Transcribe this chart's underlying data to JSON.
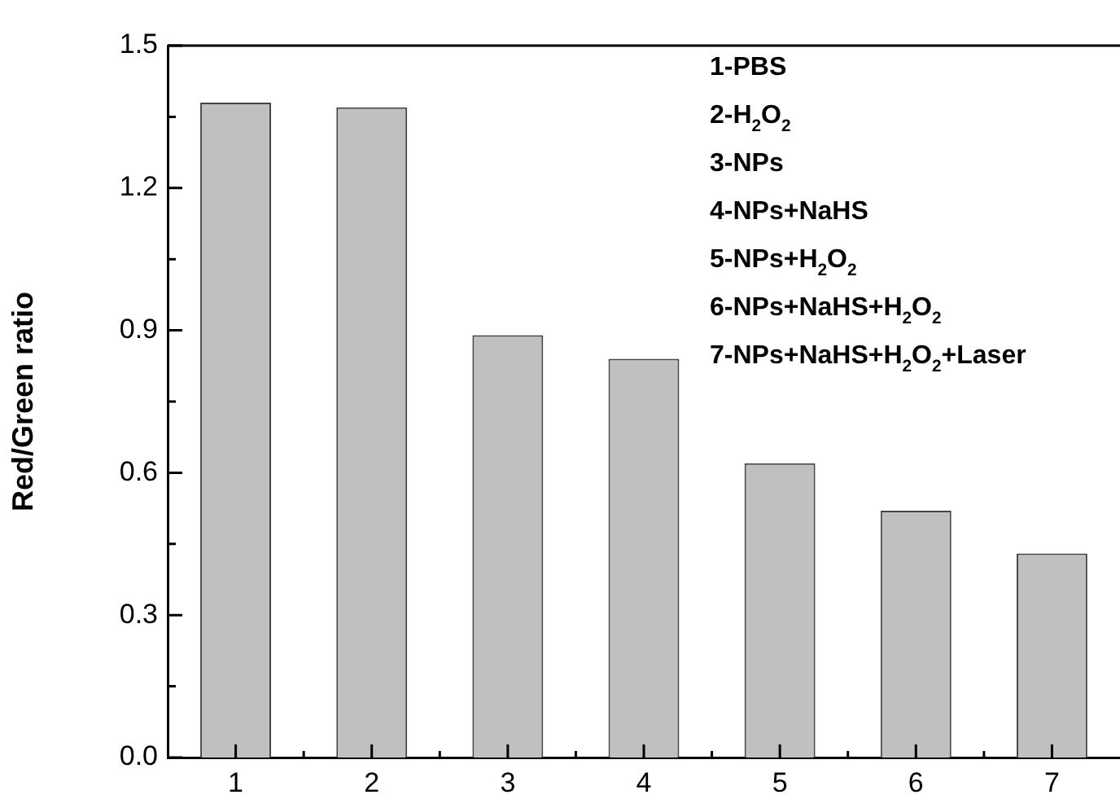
{
  "chart_data": {
    "type": "bar",
    "ylabel": "Red/Green ratio",
    "categories": [
      "1",
      "2",
      "3",
      "4",
      "5",
      "6",
      "7"
    ],
    "values": [
      1.38,
      1.37,
      0.89,
      0.84,
      0.62,
      0.52,
      0.43
    ],
    "color": "#c0c0c0",
    "ylim": [
      0,
      1.5
    ],
    "yticks": [
      {
        "value": 0,
        "label": "0.0"
      },
      {
        "value": 0.15,
        "label": null
      },
      0.3,
      {
        "value": 0.45,
        "label": null
      },
      0.6,
      {
        "value": 0.75,
        "label": null
      },
      0.9,
      {
        "value": 1.05,
        "label": null
      },
      1.2,
      {
        "value": 1.35,
        "label": null
      },
      1.5
    ],
    "annotations": [
      "1-PBS",
      "2-H$_{2}$O$_{2}$",
      "3-NPs",
      "4-NPs+NaHS",
      "5-NPs+H$_{2}$O$_{2}$",
      "6-NPs+NaHS+H$_{2}$O$_{2}$",
      "7-NPs+NaHS+H$_{2}$O$_{2}$+Laser"
    ],
    "grid": false,
    "legend": false
  }
}
